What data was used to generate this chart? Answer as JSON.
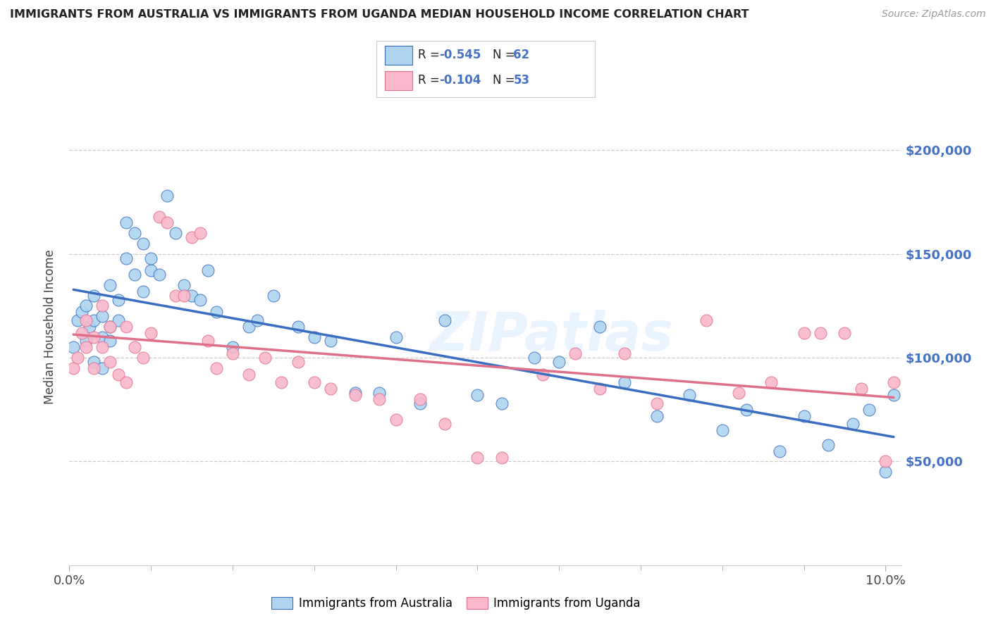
{
  "title": "IMMIGRANTS FROM AUSTRALIA VS IMMIGRANTS FROM UGANDA MEDIAN HOUSEHOLD INCOME CORRELATION CHART",
  "source": "Source: ZipAtlas.com",
  "ylabel": "Median Household Income",
  "ytick_labels": [
    "$50,000",
    "$100,000",
    "$150,000",
    "$200,000"
  ],
  "ytick_values": [
    50000,
    100000,
    150000,
    200000
  ],
  "ylim": [
    0,
    230000
  ],
  "xlim": [
    0.0,
    0.102
  ],
  "legend1_R": "-0.545",
  "legend1_N": "62",
  "legend2_R": "-0.104",
  "legend2_N": "53",
  "color_australia": "#aed4f0",
  "color_uganda": "#f9b8cc",
  "color_australia_line": "#3a6ec0",
  "color_uganda_line": "#e0708a",
  "color_blue": "#4472c4",
  "background_color": "#ffffff",
  "watermark": "ZIPatlas",
  "australia_x": [
    0.0005,
    0.001,
    0.0015,
    0.002,
    0.002,
    0.0025,
    0.003,
    0.003,
    0.003,
    0.004,
    0.004,
    0.004,
    0.005,
    0.005,
    0.005,
    0.006,
    0.006,
    0.007,
    0.007,
    0.008,
    0.008,
    0.009,
    0.009,
    0.01,
    0.01,
    0.011,
    0.012,
    0.013,
    0.014,
    0.015,
    0.016,
    0.017,
    0.018,
    0.02,
    0.022,
    0.023,
    0.025,
    0.028,
    0.03,
    0.032,
    0.035,
    0.038,
    0.04,
    0.043,
    0.046,
    0.05,
    0.053,
    0.057,
    0.06,
    0.065,
    0.068,
    0.072,
    0.076,
    0.08,
    0.083,
    0.087,
    0.09,
    0.093,
    0.096,
    0.098,
    0.1,
    0.101
  ],
  "australia_y": [
    105000,
    118000,
    122000,
    108000,
    125000,
    115000,
    130000,
    118000,
    98000,
    120000,
    110000,
    95000,
    115000,
    135000,
    108000,
    128000,
    118000,
    165000,
    148000,
    160000,
    140000,
    155000,
    132000,
    142000,
    148000,
    140000,
    178000,
    160000,
    135000,
    130000,
    128000,
    142000,
    122000,
    105000,
    115000,
    118000,
    130000,
    115000,
    110000,
    108000,
    83000,
    83000,
    110000,
    78000,
    118000,
    82000,
    78000,
    100000,
    98000,
    115000,
    88000,
    72000,
    82000,
    65000,
    75000,
    55000,
    72000,
    58000,
    68000,
    75000,
    45000,
    82000
  ],
  "uganda_x": [
    0.0005,
    0.001,
    0.0015,
    0.002,
    0.002,
    0.003,
    0.003,
    0.004,
    0.004,
    0.005,
    0.005,
    0.006,
    0.007,
    0.007,
    0.008,
    0.009,
    0.01,
    0.011,
    0.012,
    0.013,
    0.014,
    0.015,
    0.016,
    0.017,
    0.018,
    0.02,
    0.022,
    0.024,
    0.026,
    0.028,
    0.03,
    0.032,
    0.035,
    0.038,
    0.04,
    0.043,
    0.046,
    0.05,
    0.053,
    0.058,
    0.062,
    0.065,
    0.068,
    0.072,
    0.078,
    0.082,
    0.086,
    0.09,
    0.092,
    0.095,
    0.097,
    0.1,
    0.101
  ],
  "uganda_y": [
    95000,
    100000,
    112000,
    118000,
    105000,
    110000,
    95000,
    125000,
    105000,
    98000,
    115000,
    92000,
    115000,
    88000,
    105000,
    100000,
    112000,
    168000,
    165000,
    130000,
    130000,
    158000,
    160000,
    108000,
    95000,
    102000,
    92000,
    100000,
    88000,
    98000,
    88000,
    85000,
    82000,
    80000,
    70000,
    80000,
    68000,
    52000,
    52000,
    92000,
    102000,
    85000,
    102000,
    78000,
    118000,
    83000,
    88000,
    112000,
    112000,
    112000,
    85000,
    50000,
    88000
  ]
}
